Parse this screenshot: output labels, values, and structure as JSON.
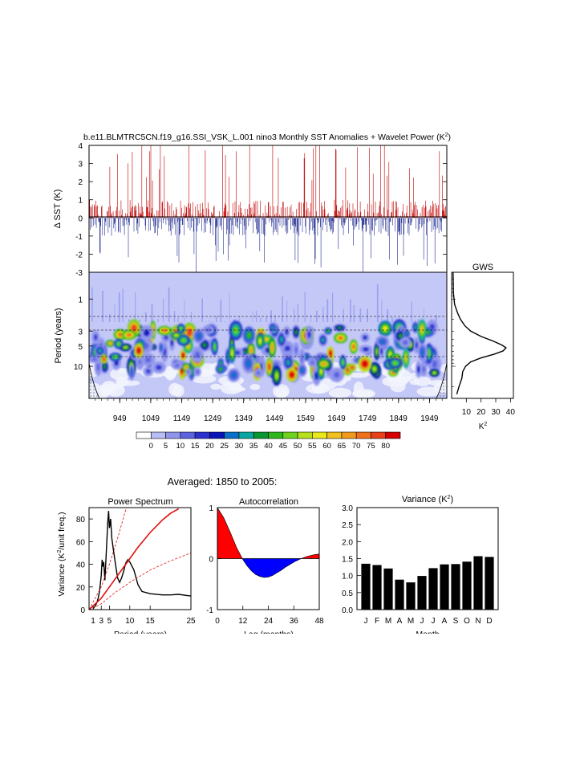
{
  "title": "b.e11.BLMTRC5CN.f19_g16.SSI_VSK_L.001 nino3 Monthly SST Anomalies + Wavelet Power (K",
  "title_sup": "2",
  "title_close": ")",
  "colors": {
    "positive": "#c00000",
    "negative": "#1f2a8f",
    "wavelet_bg": "#c4c8f7",
    "line": "#000000",
    "red_line": "#e01010",
    "bar": "#000000"
  },
  "chart_data": [
    {
      "id": "sst",
      "type": "bar",
      "title": "Monthly SST Anomalies",
      "ylabel": "Δ SST (K)",
      "ylim": [
        -3,
        4
      ],
      "yticks": [
        "4",
        "3",
        "2",
        "1",
        "0",
        "-1",
        "-2",
        "-3"
      ],
      "xlim": [
        850,
        2005
      ]
    },
    {
      "id": "wavelet",
      "type": "heatmap",
      "title": "Wavelet Power",
      "ylabel": "Period (years)",
      "yticks": [
        "1",
        "3",
        "5",
        "10"
      ],
      "ylim_log": [
        0.4,
        30
      ],
      "xlim": [
        850,
        2005
      ],
      "xticks": [
        "949",
        "1049",
        "1149",
        "1249",
        "1349",
        "1449",
        "1549",
        "1649",
        "1749",
        "1849",
        "1949"
      ],
      "xtick_values": [
        949,
        1049,
        1149,
        1249,
        1349,
        1449,
        1549,
        1649,
        1749,
        1849,
        1949
      ]
    },
    {
      "id": "gws",
      "type": "line",
      "title": "GWS",
      "xlabel": "K",
      "xlabel_sup": "2",
      "xlim": [
        0,
        42
      ],
      "xticks": [
        "10",
        "20",
        "30",
        "40"
      ],
      "xtick_values": [
        10,
        20,
        30,
        40
      ],
      "points": [
        [
          1.0,
          0.4
        ],
        [
          1.2,
          0.8
        ],
        [
          2.0,
          1.2
        ],
        [
          4.0,
          1.6
        ],
        [
          6.0,
          2.0
        ],
        [
          9.0,
          2.5
        ],
        [
          13.0,
          3.0
        ],
        [
          20.0,
          3.6
        ],
        [
          28.0,
          4.2
        ],
        [
          34.0,
          4.8
        ],
        [
          37.0,
          5.3
        ],
        [
          35.0,
          5.9
        ],
        [
          29.0,
          6.6
        ],
        [
          20.0,
          7.5
        ],
        [
          13.0,
          8.6
        ],
        [
          9.5,
          10.0
        ],
        [
          7.5,
          12.0
        ],
        [
          7.0,
          15.0
        ],
        [
          5.0,
          20.0
        ],
        [
          3.5,
          26.0
        ]
      ]
    },
    {
      "id": "colorbar",
      "type": "table",
      "labels": [
        "0",
        "5",
        "10",
        "15",
        "20",
        "25",
        "30",
        "35",
        "40",
        "45",
        "50",
        "55",
        "60",
        "65",
        "70",
        "75",
        "80"
      ],
      "colors": [
        "#ffffff",
        "#b9bdf5",
        "#9095ec",
        "#5c62e0",
        "#2b31cf",
        "#0a13b8",
        "#0a6fc9",
        "#0aa7a0",
        "#0a9630",
        "#2fb81c",
        "#6fd21c",
        "#b6e01c",
        "#e8e81c",
        "#f0c01c",
        "#f09a1c",
        "#f0701c",
        "#e8401c",
        "#d60000"
      ]
    },
    {
      "id": "power",
      "type": "line",
      "title": "Power Spectrum",
      "xlabel": "Period (years)",
      "ylabel": "Variance (K",
      "ylabel_sup": "2",
      "ylabel_rest": "/unit freq.)",
      "xlim": [
        0,
        25
      ],
      "ylim": [
        0,
        90
      ],
      "xticks": [
        "1",
        "3",
        "5",
        "10",
        "15",
        "25"
      ],
      "xtick_values": [
        1,
        3,
        5,
        10,
        15,
        25
      ],
      "yticks": [
        "0",
        "20",
        "40",
        "60",
        "80"
      ],
      "ytick_values": [
        0,
        20,
        40,
        60,
        80
      ],
      "series": [
        {
          "name": "spectrum",
          "points": [
            [
              1.0,
              1
            ],
            [
              1.5,
              3
            ],
            [
              2.0,
              7
            ],
            [
              2.3,
              11
            ],
            [
              2.6,
              17
            ],
            [
              3.0,
              30
            ],
            [
              3.2,
              44
            ],
            [
              3.4,
              38
            ],
            [
              3.6,
              42
            ],
            [
              3.9,
              26
            ],
            [
              4.3,
              55
            ],
            [
              4.6,
              78
            ],
            [
              4.8,
              87
            ],
            [
              5.0,
              72
            ],
            [
              5.3,
              80
            ],
            [
              5.6,
              63
            ],
            [
              6.0,
              52
            ],
            [
              6.5,
              40
            ],
            [
              7.0,
              28
            ],
            [
              7.5,
              24
            ],
            [
              8.0,
              28
            ],
            [
              8.5,
              34
            ],
            [
              9.0,
              41
            ],
            [
              9.5,
              44
            ],
            [
              10.0,
              42
            ],
            [
              11.0,
              35
            ],
            [
              12.0,
              22
            ],
            [
              13.0,
              16
            ],
            [
              15.0,
              14
            ],
            [
              18.0,
              13
            ],
            [
              20.0,
              13
            ],
            [
              22.0,
              13.5
            ],
            [
              24.0,
              12.5
            ],
            [
              25.0,
              12
            ]
          ]
        },
        {
          "name": "red noise",
          "points": [
            [
              0,
              0
            ],
            [
              3,
              10
            ],
            [
              6,
              25
            ],
            [
              9,
              40
            ],
            [
              12,
              55
            ],
            [
              15,
              68
            ],
            [
              18,
              79
            ],
            [
              20,
              85
            ],
            [
              22,
              89
            ]
          ]
        },
        {
          "name": "upper bound",
          "points": [
            [
              0,
              0
            ],
            [
              3,
              20
            ],
            [
              5,
              40
            ],
            [
              7,
              63
            ],
            [
              9,
              88
            ],
            [
              9.2,
              90
            ]
          ]
        },
        {
          "name": "lower bound",
          "points": [
            [
              0,
              0
            ],
            [
              3,
              5
            ],
            [
              6,
              14
            ],
            [
              10,
              24
            ],
            [
              15,
              35
            ],
            [
              20,
              43
            ],
            [
              25,
              50
            ]
          ]
        }
      ]
    },
    {
      "id": "autocorr",
      "type": "area",
      "title": "Autocorrelation",
      "xlabel": "Lag (months)",
      "xlim": [
        0,
        48
      ],
      "ylim": [
        -1,
        1
      ],
      "xticks": [
        "0",
        "12",
        "24",
        "36",
        "48"
      ],
      "xtick_values": [
        0,
        12,
        24,
        36,
        48
      ],
      "yticks": [
        "1",
        "0",
        "-1"
      ],
      "ytick_values": [
        1,
        0,
        -1
      ],
      "lags": [
        0,
        3,
        6,
        9,
        12,
        14,
        16,
        18,
        20,
        22,
        24,
        26,
        28,
        30,
        32,
        34,
        36,
        38,
        40,
        42,
        44,
        46,
        48
      ],
      "values": [
        1.0,
        0.8,
        0.52,
        0.22,
        -0.02,
        -0.14,
        -0.24,
        -0.31,
        -0.35,
        -0.37,
        -0.36,
        -0.33,
        -0.28,
        -0.23,
        -0.17,
        -0.12,
        -0.07,
        -0.03,
        0.01,
        0.04,
        0.06,
        0.08,
        0.09
      ]
    },
    {
      "id": "variance",
      "type": "bar",
      "title": "Variance (K",
      "title_sup": "2",
      "title_close": ")",
      "xlabel": "Month",
      "categories": [
        "J",
        "F",
        "M",
        "A",
        "M",
        "J",
        "J",
        "A",
        "S",
        "O",
        "N",
        "D"
      ],
      "values": [
        1.35,
        1.31,
        1.21,
        0.88,
        0.8,
        0.99,
        1.22,
        1.33,
        1.34,
        1.41,
        1.57,
        1.55
      ],
      "ylim": [
        0,
        3
      ],
      "yticks": [
        "0.0",
        "0.5",
        "1.0",
        "1.5",
        "2.0",
        "2.5",
        "3.0"
      ],
      "ytick_values": [
        0,
        0.5,
        1.0,
        1.5,
        2.0,
        2.5,
        3.0
      ]
    }
  ],
  "averaged_label": "Averaged: 1850 to 2005:"
}
